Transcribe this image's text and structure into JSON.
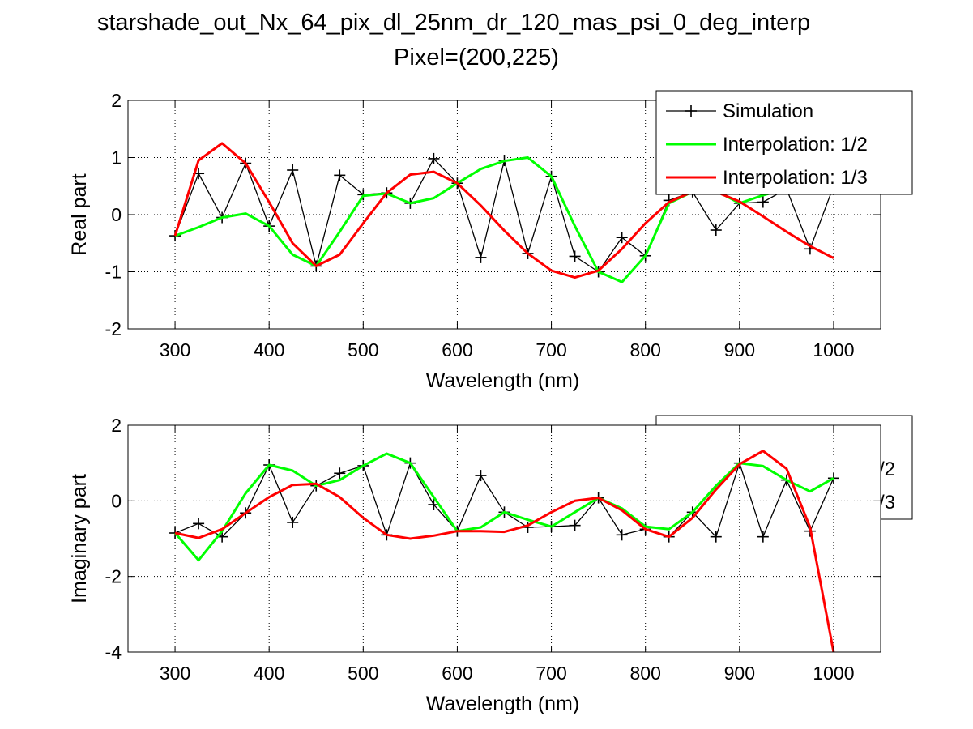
{
  "figure": {
    "title": "starshade_out_Nx_64_pix_dl_25nm_dr_120_mas_psi_0_deg_interp",
    "subtitle": "Pixel=(200,225)"
  },
  "chart_data": [
    {
      "type": "line",
      "xlabel": "Wavelength (nm)",
      "ylabel": "Real part",
      "xlim": [
        250,
        1050
      ],
      "ylim": [
        -2,
        2
      ],
      "x_ticks": [
        300,
        400,
        500,
        600,
        700,
        800,
        900,
        1000
      ],
      "y_ticks": [
        -2,
        -1,
        0,
        1,
        2
      ],
      "grid": true,
      "legend_position": "top-right",
      "legend_visible": true,
      "x": [
        300,
        325,
        350,
        375,
        400,
        425,
        450,
        475,
        500,
        525,
        550,
        575,
        600,
        625,
        650,
        675,
        700,
        725,
        750,
        775,
        800,
        825,
        850,
        875,
        900,
        925,
        950,
        975,
        1000
      ],
      "series": [
        {
          "name": "Simulation",
          "color": "#000000",
          "marker": "+",
          "values": [
            -0.37,
            0.72,
            -0.05,
            0.9,
            -0.2,
            0.78,
            -0.9,
            0.69,
            0.35,
            0.38,
            0.2,
            0.98,
            0.55,
            -0.75,
            0.95,
            -0.68,
            0.67,
            -0.73,
            -1.0,
            -0.4,
            -0.72,
            0.25,
            0.4,
            -0.27,
            0.2,
            0.22,
            0.45,
            -0.6,
            0.5
          ]
        },
        {
          "name": "Interpolation: 1/2",
          "color": "#00ff00",
          "values": [
            -0.37,
            -0.22,
            -0.05,
            0.02,
            -0.2,
            -0.7,
            -0.9,
            -0.3,
            0.33,
            0.37,
            0.2,
            0.29,
            0.55,
            0.8,
            0.94,
            1.0,
            0.67,
            -0.2,
            -1.0,
            -1.18,
            -0.72,
            0.2,
            0.4,
            0.42,
            0.2,
            0.34,
            0.45,
            0.45,
            0.5
          ]
        },
        {
          "name": "Interpolation: 1/3",
          "color": "#ff0000",
          "values": [
            -0.37,
            0.95,
            1.25,
            0.9,
            0.22,
            -0.5,
            -0.9,
            -0.7,
            -0.15,
            0.38,
            0.7,
            0.75,
            0.55,
            0.16,
            -0.28,
            -0.68,
            -0.98,
            -1.1,
            -0.98,
            -0.6,
            -0.15,
            0.22,
            0.4,
            0.4,
            0.23,
            -0.03,
            -0.3,
            -0.55,
            -0.76
          ]
        }
      ]
    },
    {
      "type": "line",
      "xlabel": "Wavelength (nm)",
      "ylabel": "Imaginary part",
      "xlim": [
        250,
        1050
      ],
      "ylim": [
        -4,
        2
      ],
      "x_ticks": [
        300,
        400,
        500,
        600,
        700,
        800,
        900,
        1000
      ],
      "y_ticks": [
        -4,
        -2,
        0,
        2
      ],
      "grid": true,
      "legend_position": "top-right",
      "legend_visible_text": [
        "/2",
        "/3"
      ],
      "x": [
        300,
        325,
        350,
        375,
        400,
        425,
        450,
        475,
        500,
        525,
        550,
        575,
        600,
        625,
        650,
        675,
        700,
        725,
        750,
        775,
        800,
        825,
        850,
        875,
        900,
        925,
        950,
        975,
        1000
      ],
      "series": [
        {
          "name": "Simulation",
          "color": "#000000",
          "marker": "+",
          "values": [
            -0.85,
            -0.6,
            -0.95,
            -0.32,
            0.95,
            -0.57,
            0.4,
            0.73,
            0.93,
            -0.9,
            1.0,
            -0.1,
            -0.8,
            0.67,
            -0.3,
            -0.7,
            -0.68,
            -0.65,
            0.08,
            -0.9,
            -0.75,
            -0.95,
            -0.3,
            -0.95,
            1.0,
            -0.95,
            0.55,
            -0.8,
            0.6
          ]
        },
        {
          "name": "Interpolation: 1/2",
          "color": "#00ff00",
          "values": [
            -0.85,
            -1.57,
            -0.8,
            0.2,
            0.95,
            0.8,
            0.4,
            0.55,
            0.93,
            1.25,
            1.0,
            0.1,
            -0.8,
            -0.7,
            -0.3,
            -0.5,
            -0.68,
            -0.3,
            0.08,
            -0.2,
            -0.68,
            -0.75,
            -0.3,
            0.4,
            1.0,
            0.92,
            0.55,
            0.25,
            0.6
          ]
        },
        {
          "name": "Interpolation: 1/3",
          "color": "#ff0000",
          "values": [
            -0.85,
            -0.98,
            -0.75,
            -0.32,
            0.1,
            0.42,
            0.45,
            0.1,
            -0.45,
            -0.9,
            -1.0,
            -0.92,
            -0.8,
            -0.8,
            -0.82,
            -0.65,
            -0.3,
            0.0,
            0.08,
            -0.25,
            -0.75,
            -0.95,
            -0.45,
            0.3,
            0.97,
            1.32,
            0.85,
            -0.7,
            -4.0
          ]
        }
      ]
    }
  ]
}
